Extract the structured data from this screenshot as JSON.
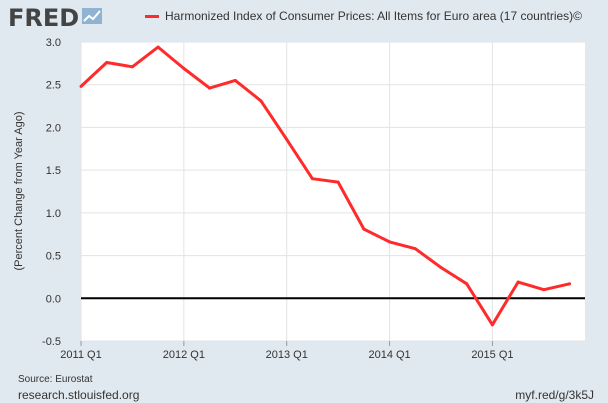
{
  "brand": {
    "logo_text": "FRED",
    "logo_icon": "fred-chart-icon"
  },
  "colors": {
    "series": "#ff2a2a",
    "background": "#e1e9f0",
    "plot_background": "#ffffff",
    "zero_line": "#000000"
  },
  "chart_data": {
    "type": "line",
    "title": "",
    "ylabel": "(Percent Change from Year Ago)",
    "xlabel": "",
    "ylim": [
      -0.5,
      3.0
    ],
    "yticks": [
      -0.5,
      0.0,
      0.5,
      1.0,
      1.5,
      2.0,
      2.5,
      3.0
    ],
    "ytick_labels": [
      "-0.5",
      "0.0",
      "0.5",
      "1.0",
      "1.5",
      "2.0",
      "2.5",
      "3.0"
    ],
    "xticks": [
      "2011 Q1",
      "2012 Q1",
      "2013 Q1",
      "2014 Q1",
      "2015 Q1"
    ],
    "grid": true,
    "legend_position": "top",
    "series": [
      {
        "name": "Harmonized Index of Consumer Prices: All Items for Euro area (17 countries)©",
        "x": [
          "2011 Q1",
          "2011 Q2",
          "2011 Q3",
          "2011 Q4",
          "2012 Q1",
          "2012 Q2",
          "2012 Q3",
          "2012 Q4",
          "2013 Q1",
          "2013 Q2",
          "2013 Q3",
          "2013 Q4",
          "2014 Q1",
          "2014 Q2",
          "2014 Q3",
          "2014 Q4",
          "2015 Q1",
          "2015 Q2",
          "2015 Q3",
          "2015 Q4"
        ],
        "values": [
          2.48,
          2.76,
          2.71,
          2.94,
          2.69,
          2.46,
          2.55,
          2.31,
          1.86,
          1.4,
          1.36,
          0.81,
          0.66,
          0.58,
          0.36,
          0.17,
          -0.31,
          0.19,
          0.1,
          0.17
        ]
      }
    ]
  },
  "footer": {
    "source": "Source: Eurostat",
    "site": "research.stlouisfed.org",
    "shortlink": "myf.red/g/3k5J"
  }
}
